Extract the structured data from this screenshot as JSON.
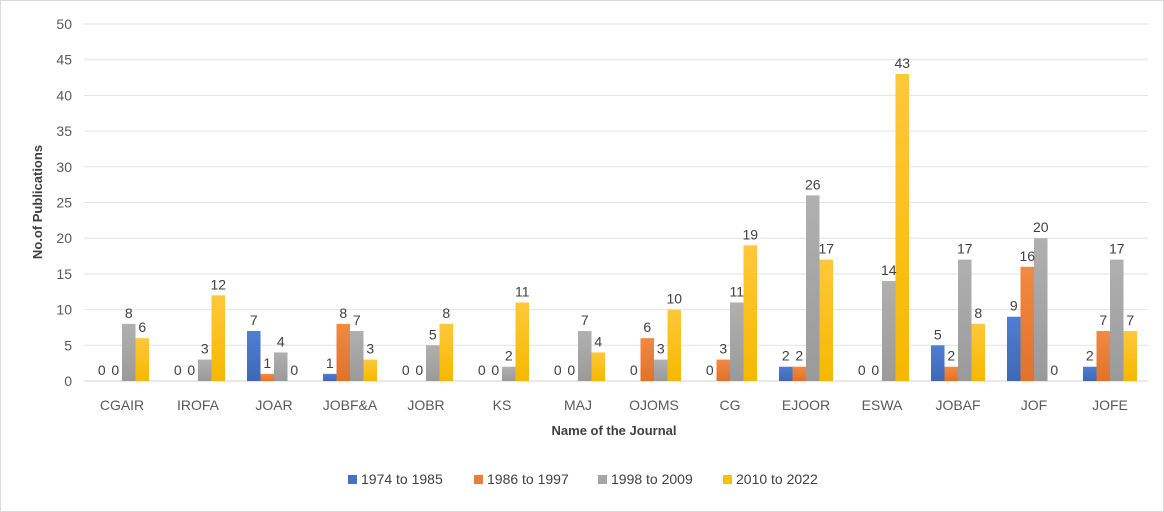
{
  "chart_data": {
    "type": "bar",
    "title": "",
    "xlabel": "Name of the Journal",
    "ylabel": "No.of Publications",
    "ylim": [
      0,
      50
    ],
    "yticks": [
      "0",
      "5",
      "10",
      "15",
      "20",
      "25",
      "30",
      "35",
      "40",
      "45",
      "50"
    ],
    "grid": true,
    "legend_position": "bottom",
    "categories": [
      "CGAIR",
      "IROFA",
      "JOAR",
      "JOBF&A",
      "JOBR",
      "KS",
      "MAJ",
      "OJOMS",
      "CG",
      "EJOOR",
      "ESWA",
      "JOBAF",
      "JOF",
      "JOFE"
    ],
    "series": [
      {
        "name": "1974 to 1985",
        "color": "#4472C4",
        "values": [
          0,
          0,
          7,
          1,
          0,
          0,
          0,
          0,
          0,
          2,
          0,
          5,
          9,
          2
        ]
      },
      {
        "name": "1986 to 1997",
        "color": "#ED7D31",
        "values": [
          0,
          0,
          1,
          8,
          0,
          0,
          0,
          6,
          3,
          2,
          0,
          2,
          16,
          7
        ]
      },
      {
        "name": "1998 to 2009",
        "color": "#A5A5A5",
        "values": [
          8,
          3,
          4,
          7,
          5,
          2,
          7,
          3,
          11,
          26,
          14,
          17,
          20,
          17
        ]
      },
      {
        "name": "2010 to 2022",
        "color": "#FFC000",
        "values": [
          6,
          12,
          0,
          3,
          8,
          11,
          4,
          10,
          19,
          17,
          43,
          8,
          0,
          7
        ]
      }
    ]
  }
}
